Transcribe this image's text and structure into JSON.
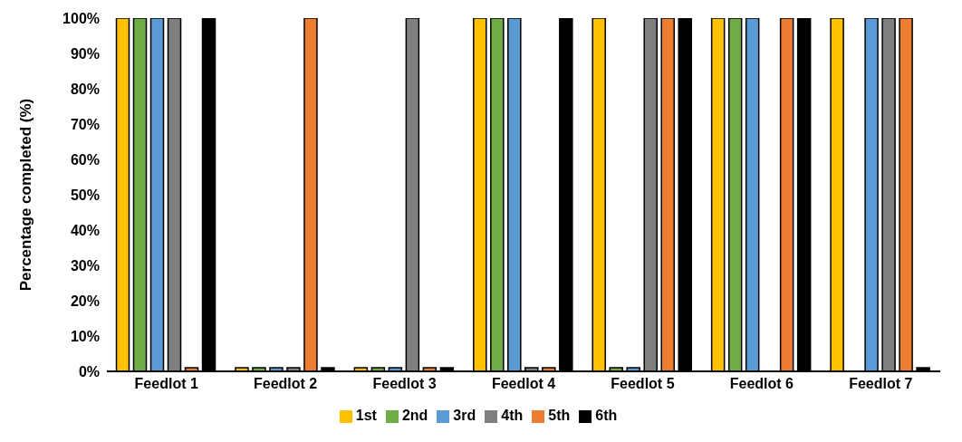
{
  "chart_data": {
    "type": "bar",
    "ylabel": "Percentage completed (%)",
    "categories": [
      "Feedlot 1",
      "Feedlot 2",
      "Feedlot 3",
      "Feedlot 4",
      "Feedlot 5",
      "Feedlot 6",
      "Feedlot 7"
    ],
    "series": [
      {
        "name": "1st",
        "color": "#ffc000",
        "values": [
          100,
          1,
          1,
          100,
          100,
          100,
          100
        ]
      },
      {
        "name": "2nd",
        "color": "#70ad47",
        "values": [
          100,
          1,
          1,
          100,
          1,
          100,
          0
        ]
      },
      {
        "name": "3rd",
        "color": "#5b9bd5",
        "values": [
          100,
          1,
          1,
          100,
          1,
          100,
          100
        ]
      },
      {
        "name": "4th",
        "color": "#7f7f7f",
        "values": [
          100,
          1,
          100,
          1,
          100,
          0,
          100
        ]
      },
      {
        "name": "5th",
        "color": "#ed7d31",
        "values": [
          1,
          100,
          1,
          1,
          100,
          100,
          100
        ]
      },
      {
        "name": "6th",
        "color": "#000000",
        "values": [
          100,
          1,
          1,
          100,
          100,
          100,
          1
        ]
      }
    ],
    "ylim": [
      0,
      100
    ],
    "yticks": [
      {
        "value": 0,
        "label": "0%"
      },
      {
        "value": 10,
        "label": "10%"
      },
      {
        "value": 20,
        "label": "20%"
      },
      {
        "value": 30,
        "label": "30%"
      },
      {
        "value": 40,
        "label": "40%"
      },
      {
        "value": 50,
        "label": "50%"
      },
      {
        "value": 60,
        "label": "60%"
      },
      {
        "value": 70,
        "label": "70%"
      },
      {
        "value": 80,
        "label": "80%"
      },
      {
        "value": 90,
        "label": "90%"
      },
      {
        "value": 100,
        "label": "100%"
      }
    ],
    "grid": false,
    "legend": "bottom"
  }
}
